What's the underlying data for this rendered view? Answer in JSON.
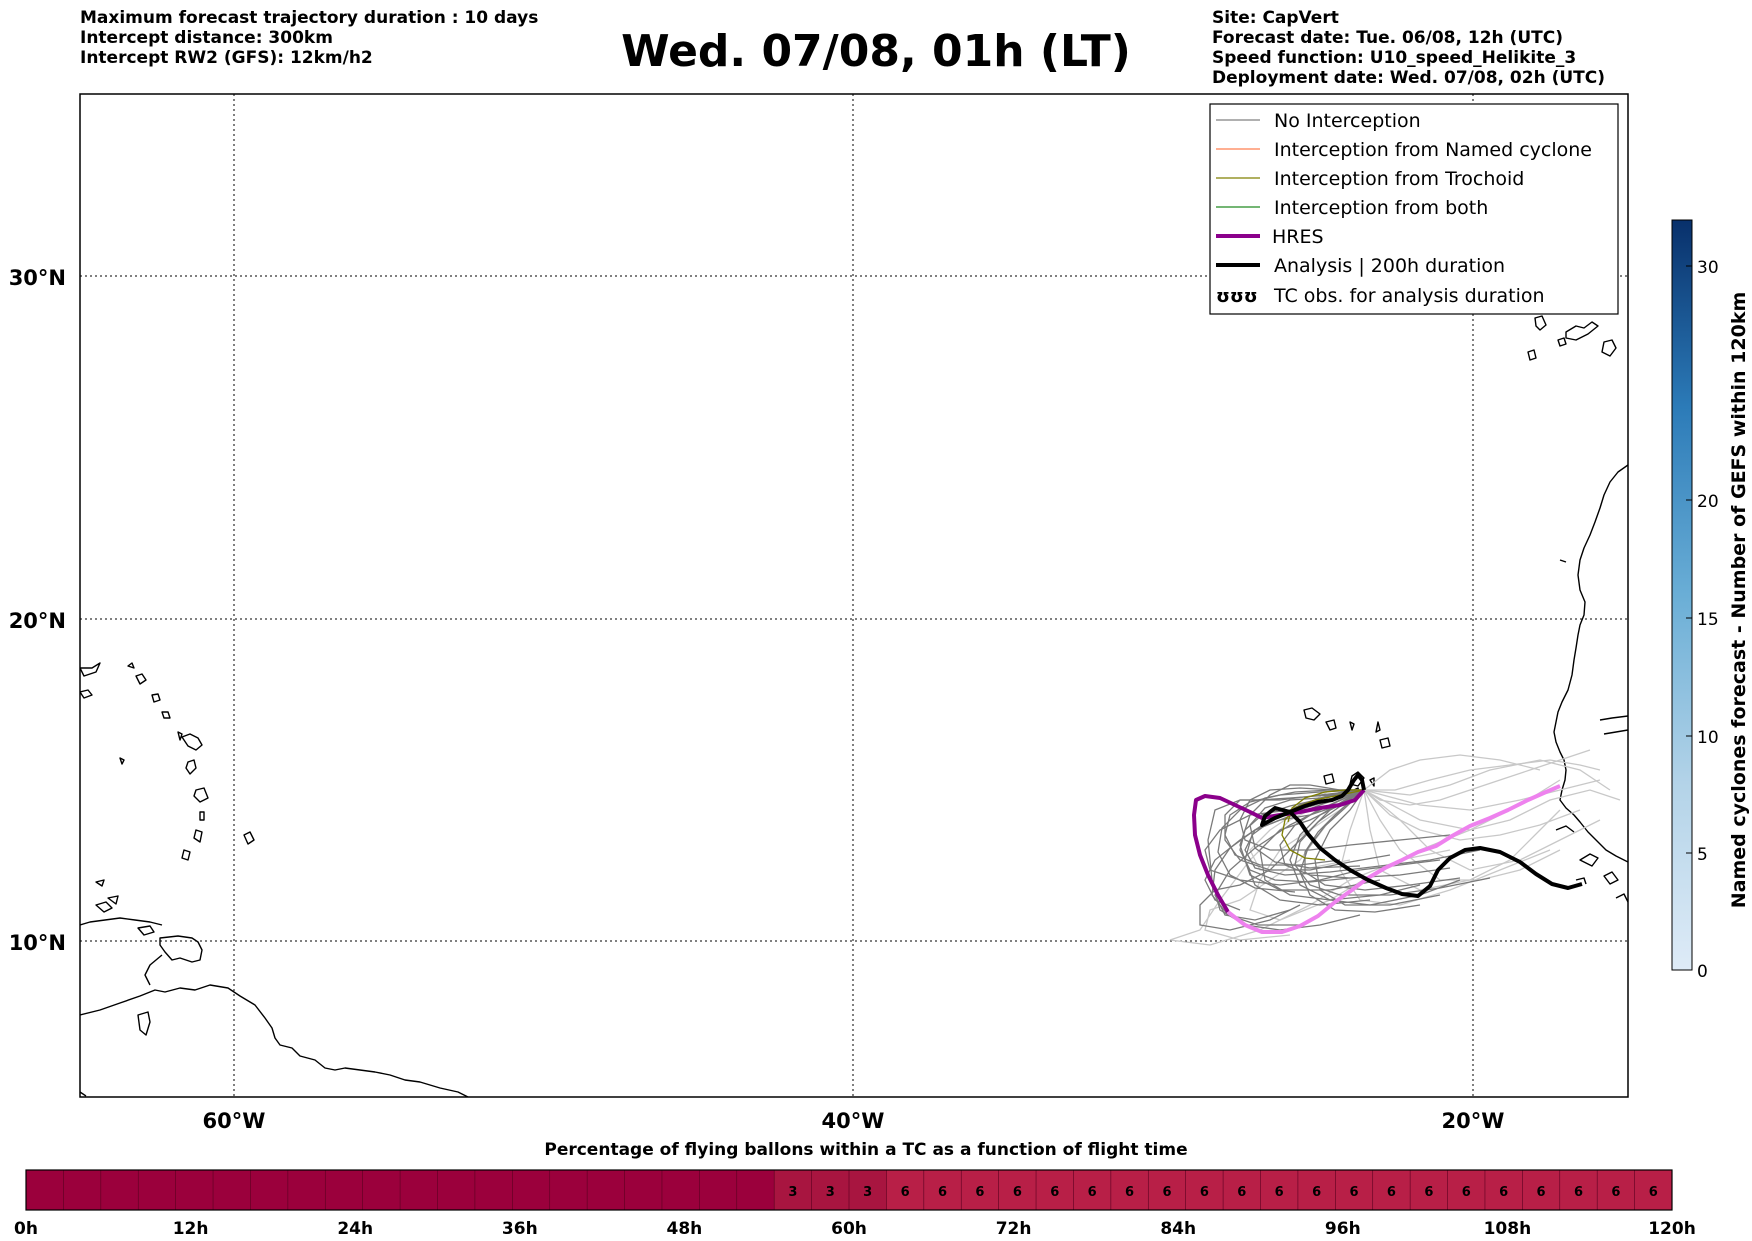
{
  "header": {
    "left": [
      "Maximum forecast trajectory duration : 10 days",
      "Intercept distance: 300km",
      "Intercept RW2 (GFS):  12km/h2"
    ],
    "title": "Wed. 07/08, 01h (LT)",
    "right": [
      "Site: CapVert",
      "Forecast date: Tue. 06/08, 12h (UTC)",
      "Speed function: U10_speed_Helikite_3",
      "Deployment date: Wed. 07/08, 02h (UTC)"
    ]
  },
  "map": {
    "lon_labels": [
      "60°W",
      "40°W",
      "20°W"
    ],
    "lat_labels": [
      "30°N",
      "20°N",
      "10°N"
    ],
    "legend": [
      {
        "label": "No Interception",
        "color": "#808080"
      },
      {
        "label": "Interception from Named cyclone",
        "color": "#ff7f50"
      },
      {
        "label": "Interception from Trochoid",
        "color": "#808000"
      },
      {
        "label": "Interception from both",
        "color": "#228b22"
      },
      {
        "label": "HRES",
        "color": "#8b008b"
      },
      {
        "label": "Analysis | 200h duration",
        "color": "#000000"
      },
      {
        "label": "TC obs. for analysis duration",
        "symbol": "ʊʊʊ"
      }
    ]
  },
  "colorbar": {
    "label": "Named cyclones forecast - Number of GEFS within 120km",
    "ticks": [
      "0",
      "5",
      "10",
      "15",
      "20",
      "30"
    ]
  },
  "timebar": {
    "title": "Percentage of flying ballons within a TC as a function of flight time",
    "ticks": [
      "0h",
      "12h",
      "24h",
      "36h",
      "48h",
      "60h",
      "72h",
      "84h",
      "96h",
      "108h",
      "120h"
    ],
    "cells": [
      "",
      "",
      "",
      "",
      "",
      "",
      "",
      "",
      "",
      "",
      "",
      "",
      "",
      "",
      "",
      "",
      "",
      "",
      "",
      "",
      "3",
      "3",
      "3",
      "6",
      "6",
      "6",
      "6",
      "6",
      "6",
      "6",
      "6",
      "6",
      "6",
      "6",
      "6",
      "6",
      "6",
      "6",
      "6",
      "6",
      "6",
      "6",
      "6",
      "6"
    ],
    "colors": {
      "zero": "#9b003c",
      "three": "#a81540",
      "six": "#b81f47"
    }
  }
}
